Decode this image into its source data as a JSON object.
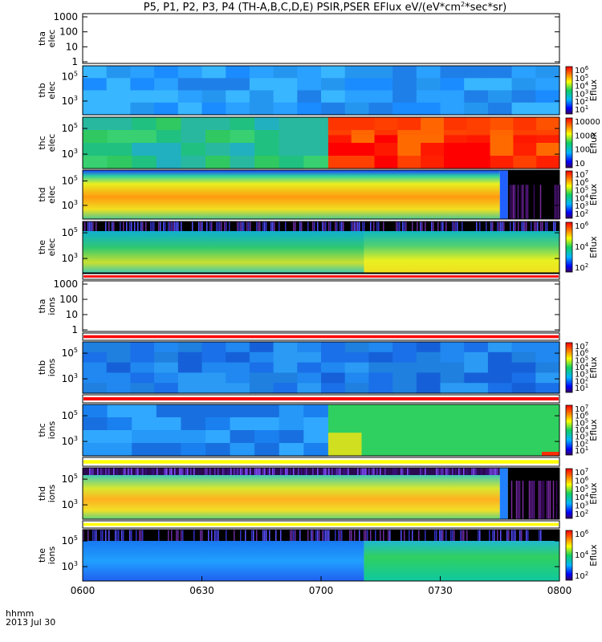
{
  "chart_data": {
    "type": "heatmap",
    "title": "P5, P1, P2, P3, P4 (TH-A,B,C,D,E) PSIR,PSER EFlux eV/(eV*cm",
    "title_sup": "2",
    "title_tail": "*sec*sr)",
    "time_axis": {
      "ticks": [
        "0600",
        "0630",
        "0700",
        "0730",
        "0800"
      ],
      "range": [
        "06:00",
        "08:00"
      ],
      "label_line1": "hhmm",
      "label_line2": "2013 Jul 30"
    },
    "panels": [
      {
        "name": "tha_elec",
        "label": [
          "tha",
          "elec"
        ],
        "empty": true,
        "yticks": [
          "1000",
          "100",
          "10",
          "1"
        ]
      },
      {
        "name": "thb_elec",
        "label": [
          "thb",
          "elec"
        ],
        "cbar": "Eflux",
        "yticks": [
          {
            "b": "10",
            "e": "5"
          },
          {
            "b": "10",
            "e": "3"
          }
        ],
        "cbticks": [
          {
            "b": "10",
            "e": "6"
          },
          {
            "b": "10",
            "e": "5"
          },
          {
            "b": "10",
            "e": "4"
          },
          {
            "b": "10",
            "e": "3"
          },
          {
            "b": "10",
            "e": "2"
          },
          {
            "b": "10",
            "e": "1"
          }
        ]
      },
      {
        "name": "thc_elec",
        "label": [
          "thc",
          "elec"
        ],
        "cbar": "Eflux",
        "yticks": [
          {
            "b": "10",
            "e": "5"
          },
          {
            "b": "10",
            "e": "3"
          }
        ],
        "cbticks": [
          "10000",
          "1000",
          "100",
          "10"
        ]
      },
      {
        "name": "thd_elec",
        "label": [
          "thd",
          "elec"
        ],
        "cbar": "Eflux",
        "yticks": [
          {
            "b": "10",
            "e": "5"
          },
          {
            "b": "10",
            "e": "3"
          }
        ],
        "cbticks": [
          {
            "b": "10",
            "e": "7"
          },
          {
            "b": "10",
            "e": "6"
          },
          {
            "b": "10",
            "e": "5"
          },
          {
            "b": "10",
            "e": "4"
          },
          {
            "b": "10",
            "e": "3"
          },
          {
            "b": "10",
            "e": "2"
          }
        ]
      },
      {
        "name": "the_elec",
        "label": [
          "the",
          "elec"
        ],
        "cbar": "Eflux",
        "yticks": [
          {
            "b": "10",
            "e": "5"
          },
          {
            "b": "10",
            "e": "3"
          }
        ],
        "cbticks": [
          {
            "b": "10",
            "e": "6"
          },
          {
            "b": "10",
            "e": "4"
          },
          {
            "b": "10",
            "e": "2"
          }
        ]
      },
      {
        "name": "tha_ions",
        "label": [
          "tha",
          "ions"
        ],
        "empty": true,
        "yticks": [
          "1000",
          "100",
          "10",
          "1"
        ]
      },
      {
        "name": "thb_ions",
        "label": [
          "thb",
          "ions"
        ],
        "cbar": "Eflux",
        "yticks": [
          {
            "b": "10",
            "e": "5"
          },
          {
            "b": "10",
            "e": "3"
          }
        ],
        "cbticks": [
          {
            "b": "10",
            "e": "7"
          },
          {
            "b": "10",
            "e": "6"
          },
          {
            "b": "10",
            "e": "5"
          },
          {
            "b": "10",
            "e": "4"
          },
          {
            "b": "10",
            "e": "3"
          },
          {
            "b": "10",
            "e": "2"
          },
          {
            "b": "10",
            "e": "1"
          }
        ]
      },
      {
        "name": "thc_ions",
        "label": [
          "thc",
          "ions"
        ],
        "cbar": "Eflux",
        "yticks": [
          {
            "b": "10",
            "e": "5"
          },
          {
            "b": "10",
            "e": "3"
          }
        ],
        "cbticks": [
          {
            "b": "10",
            "e": "7"
          },
          {
            "b": "10",
            "e": "6"
          },
          {
            "b": "10",
            "e": "5"
          },
          {
            "b": "10",
            "e": "4"
          },
          {
            "b": "10",
            "e": "3"
          },
          {
            "b": "10",
            "e": "2"
          },
          {
            "b": "10",
            "e": "1"
          }
        ]
      },
      {
        "name": "thd_ions",
        "label": [
          "thd",
          "ions"
        ],
        "cbar": "Eflux",
        "yticks": [
          {
            "b": "10",
            "e": "5"
          },
          {
            "b": "10",
            "e": "3"
          }
        ],
        "cbticks": [
          {
            "b": "10",
            "e": "7"
          },
          {
            "b": "10",
            "e": "6"
          },
          {
            "b": "10",
            "e": "5"
          },
          {
            "b": "10",
            "e": "4"
          },
          {
            "b": "10",
            "e": "3"
          },
          {
            "b": "10",
            "e": "2"
          }
        ]
      },
      {
        "name": "the_ions",
        "label": [
          "the",
          "ions"
        ],
        "cbar": "Eflux",
        "yticks": [
          {
            "b": "10",
            "e": "5"
          },
          {
            "b": "10",
            "e": "3"
          }
        ],
        "cbticks": [
          {
            "b": "10",
            "e": "6"
          },
          {
            "b": "10",
            "e": "4"
          },
          {
            "b": "10",
            "e": "2"
          }
        ]
      }
    ]
  }
}
